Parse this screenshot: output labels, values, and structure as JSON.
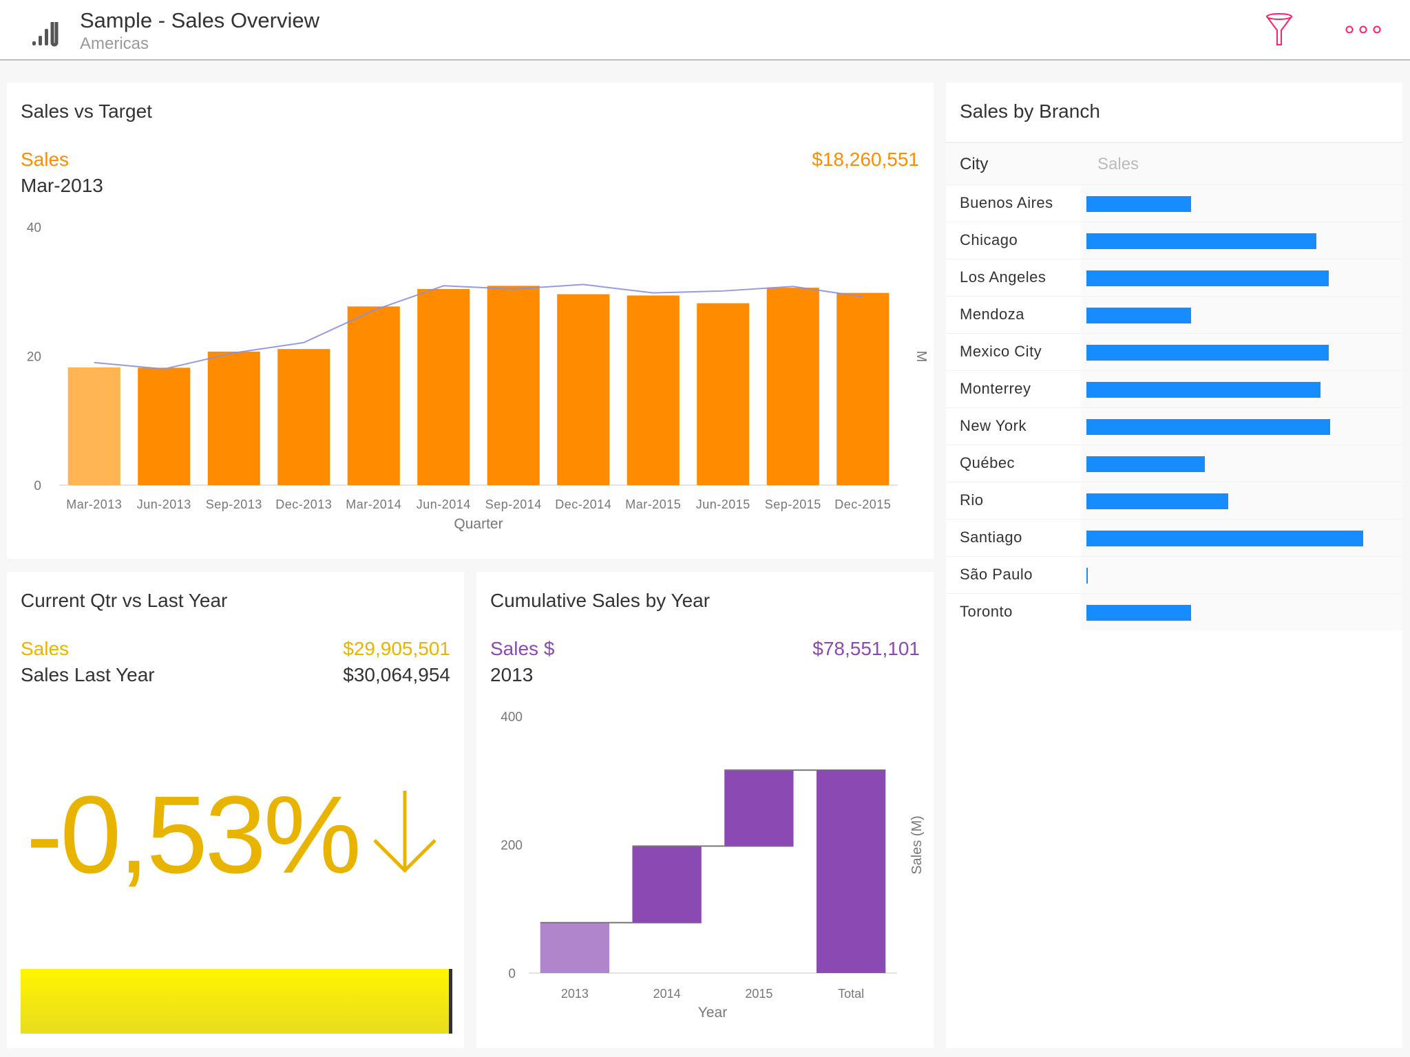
{
  "header": {
    "title": "Sample - Sales Overview",
    "subtitle": "Americas",
    "logo_icon": "bar-chart-icon",
    "filter_icon": "filter-icon",
    "more_icon": "more-icon",
    "accent": "#ff1f6b"
  },
  "sales_vs_target": {
    "title": "Sales vs Target",
    "measure": "Sales",
    "period": "Mar-2013",
    "value": "$18,260,551",
    "chart_data": {
      "type": "bar",
      "categories": [
        "Mar-2013",
        "Jun-2013",
        "Sep-2013",
        "Dec-2013",
        "Mar-2014",
        "Jun-2014",
        "Sep-2014",
        "Dec-2014",
        "Mar-2015",
        "Jun-2015",
        "Sep-2015",
        "Dec-2015"
      ],
      "series": [
        {
          "type": "bar",
          "values": [
            18.26,
            18.2,
            20.7,
            21.1,
            27.7,
            30.4,
            30.9,
            29.6,
            29.4,
            28.2,
            30.6,
            29.8
          ],
          "color": "#ff8c00",
          "highlight_color": "#ffb554"
        },
        {
          "type": "line",
          "values": [
            19.0,
            18.0,
            20.5,
            22.1,
            27.1,
            30.9,
            30.4,
            31.1,
            29.8,
            30.1,
            30.8,
            29.2
          ],
          "color": "#8a8fe0"
        }
      ],
      "yticks": [
        0,
        20,
        40
      ],
      "ylim": [
        0,
        40
      ],
      "xlabel": "Quarter",
      "ylabel": "M",
      "grid": false,
      "selected": "Mar-2013"
    }
  },
  "current_qtr": {
    "title": "Current Qtr vs Last Year",
    "measure": "Sales",
    "measure_value": "$29,905,501",
    "compare": "Sales Last Year",
    "compare_value": "$30,064,954",
    "change": "-0,53%",
    "direction_icon": "arrow-down-icon",
    "progress": 0.9947,
    "color": "#e8b400"
  },
  "cumulative": {
    "title": "Cumulative Sales by Year",
    "measure": "Sales $",
    "period": "2013",
    "value": "$78,551,101",
    "chart_data": {
      "type": "waterfall",
      "categories": [
        "2013",
        "2014",
        "2015",
        "Total"
      ],
      "values": [
        78.6,
        119.3,
        118.3,
        316.2
      ],
      "yticks": [
        0,
        200,
        400
      ],
      "ylim": [
        0,
        400
      ],
      "xlabel": "Year",
      "ylabel": "Sales (M)",
      "color": "#8b4ab3",
      "highlight_color": "#b085cc"
    }
  },
  "branch": {
    "title": "Sales by Branch",
    "columns": [
      "City",
      "Sales"
    ],
    "chart_data": {
      "type": "bar",
      "orientation": "horizontal",
      "categories": [
        "Buenos Aires",
        "Chicago",
        "Los Angeles",
        "Mendoza",
        "Mexico City",
        "Monterrey",
        "New York",
        "Québec",
        "Rio",
        "Santiago",
        "São Paulo",
        "Toronto"
      ],
      "values": [
        0.378,
        0.831,
        0.876,
        0.378,
        0.876,
        0.846,
        0.881,
        0.428,
        0.512,
        1.0,
        0.005,
        0.378
      ],
      "color": "#168cff"
    }
  }
}
